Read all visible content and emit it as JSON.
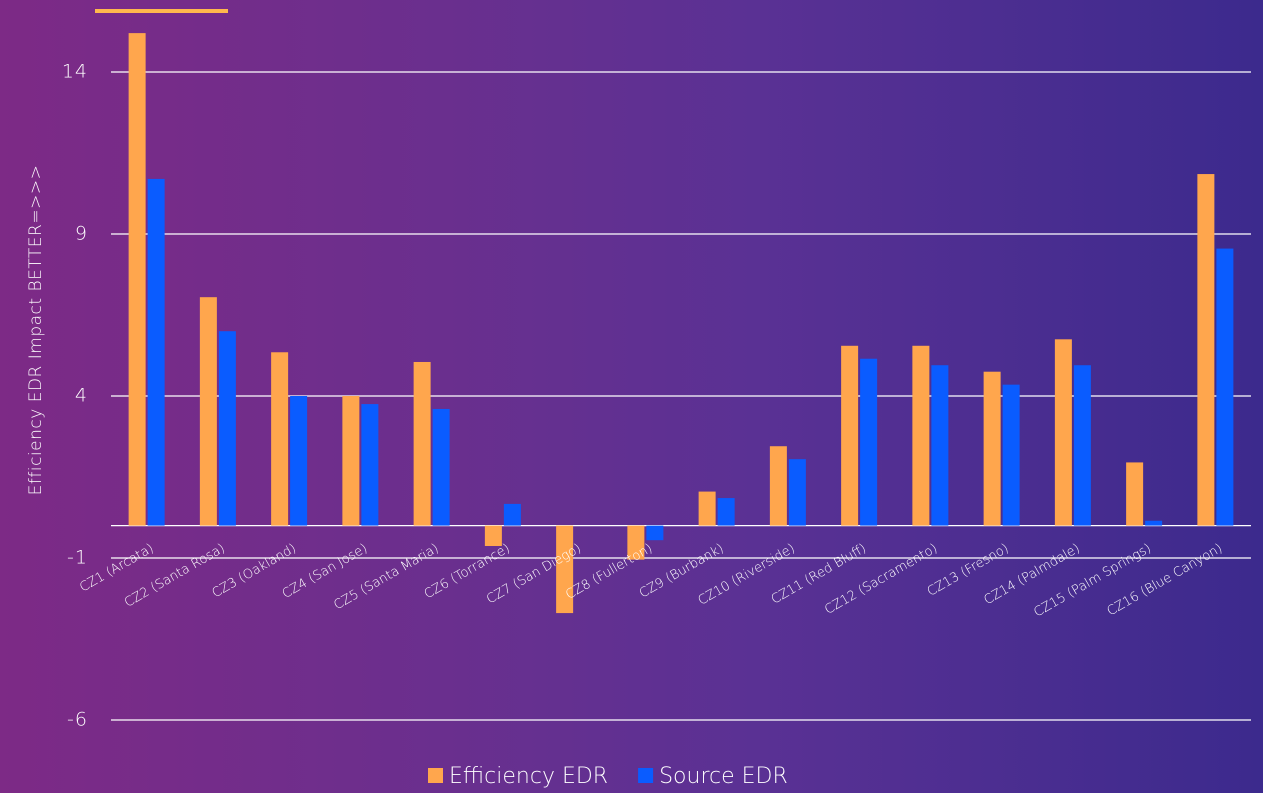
{
  "chart_data": {
    "type": "bar",
    "y_axis_label": "Efficiency EDR Impact   BETTER=>>>",
    "categories": [
      "CZ1  (Arcata)",
      "CZ2  (Santa Rosa)",
      "CZ3  (Oakland)",
      "CZ4  (San Jose)",
      "CZ5  (Santa Maria)",
      "CZ6  (Torrance)",
      "CZ7  (San Diego)",
      "CZ8  (Fullerton)",
      "CZ9  (Burbank)",
      "CZ10  (Riverside)",
      "CZ11  (Red Bluff)",
      "CZ12  (Sacramento)",
      "CZ13  (Fresno)",
      "CZ14  (Palmdale)",
      "CZ15  (Palm Springs)",
      "CZ16  (Blue Canyon)"
    ],
    "series": [
      {
        "name": "Efficiency EDR",
        "color": "#ffa64d",
        "values": [
          15.2,
          7.05,
          5.35,
          4.0,
          5.05,
          -0.63,
          -2.7,
          -1.05,
          1.05,
          2.45,
          5.55,
          5.55,
          4.75,
          5.75,
          1.95,
          10.85
        ]
      },
      {
        "name": "Source EDR",
        "color": "#0a5cff",
        "values": [
          10.7,
          6.0,
          4.0,
          3.75,
          3.6,
          0.67,
          0,
          -0.45,
          0.85,
          2.05,
          5.15,
          4.95,
          4.35,
          4.95,
          0.15,
          8.55
        ]
      }
    ],
    "ylim": [
      -6,
      16
    ],
    "yticks": [
      -6,
      -1,
      4,
      9,
      14
    ],
    "grid": true
  }
}
